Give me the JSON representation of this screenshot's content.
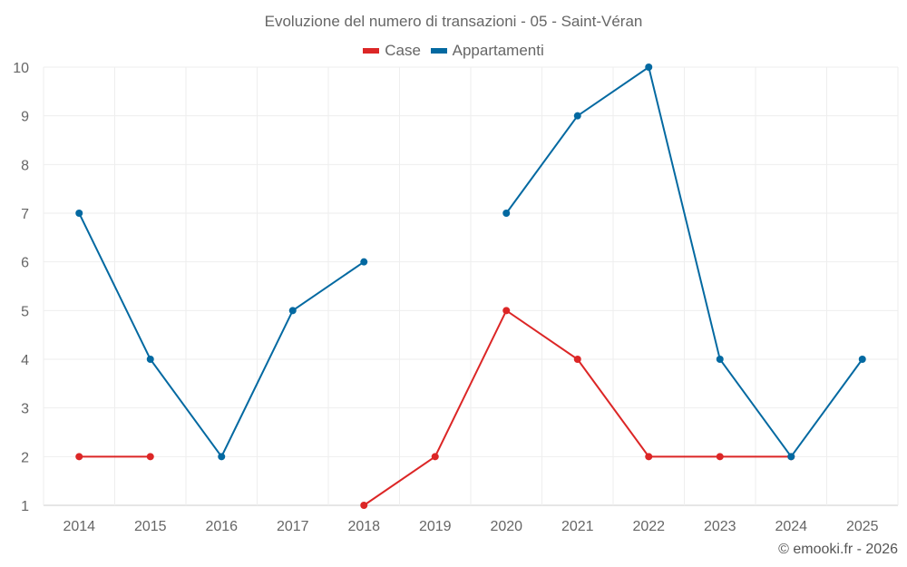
{
  "chart_data": {
    "type": "line",
    "title": "Evoluzione del numero di transazioni - 05 - Saint-Véran",
    "xlabel": "",
    "ylabel": "",
    "categories": [
      "2014",
      "2015",
      "2016",
      "2017",
      "2018",
      "2019",
      "2020",
      "2021",
      "2022",
      "2023",
      "2024",
      "2025"
    ],
    "ylim": [
      1,
      10
    ],
    "yticks": [
      1,
      2,
      3,
      4,
      5,
      6,
      7,
      8,
      9,
      10
    ],
    "grid": true,
    "legend_position": "top-center",
    "series": [
      {
        "name": "Case",
        "color": "#dc2626",
        "values": [
          2,
          2,
          null,
          null,
          1,
          2,
          5,
          4,
          2,
          2,
          2,
          null
        ]
      },
      {
        "name": "Appartamenti",
        "color": "#0369a1",
        "values": [
          7,
          4,
          2,
          5,
          6,
          null,
          7,
          9,
          10,
          4,
          2,
          4
        ]
      }
    ]
  },
  "credit": "© emooki.fr - 2026"
}
